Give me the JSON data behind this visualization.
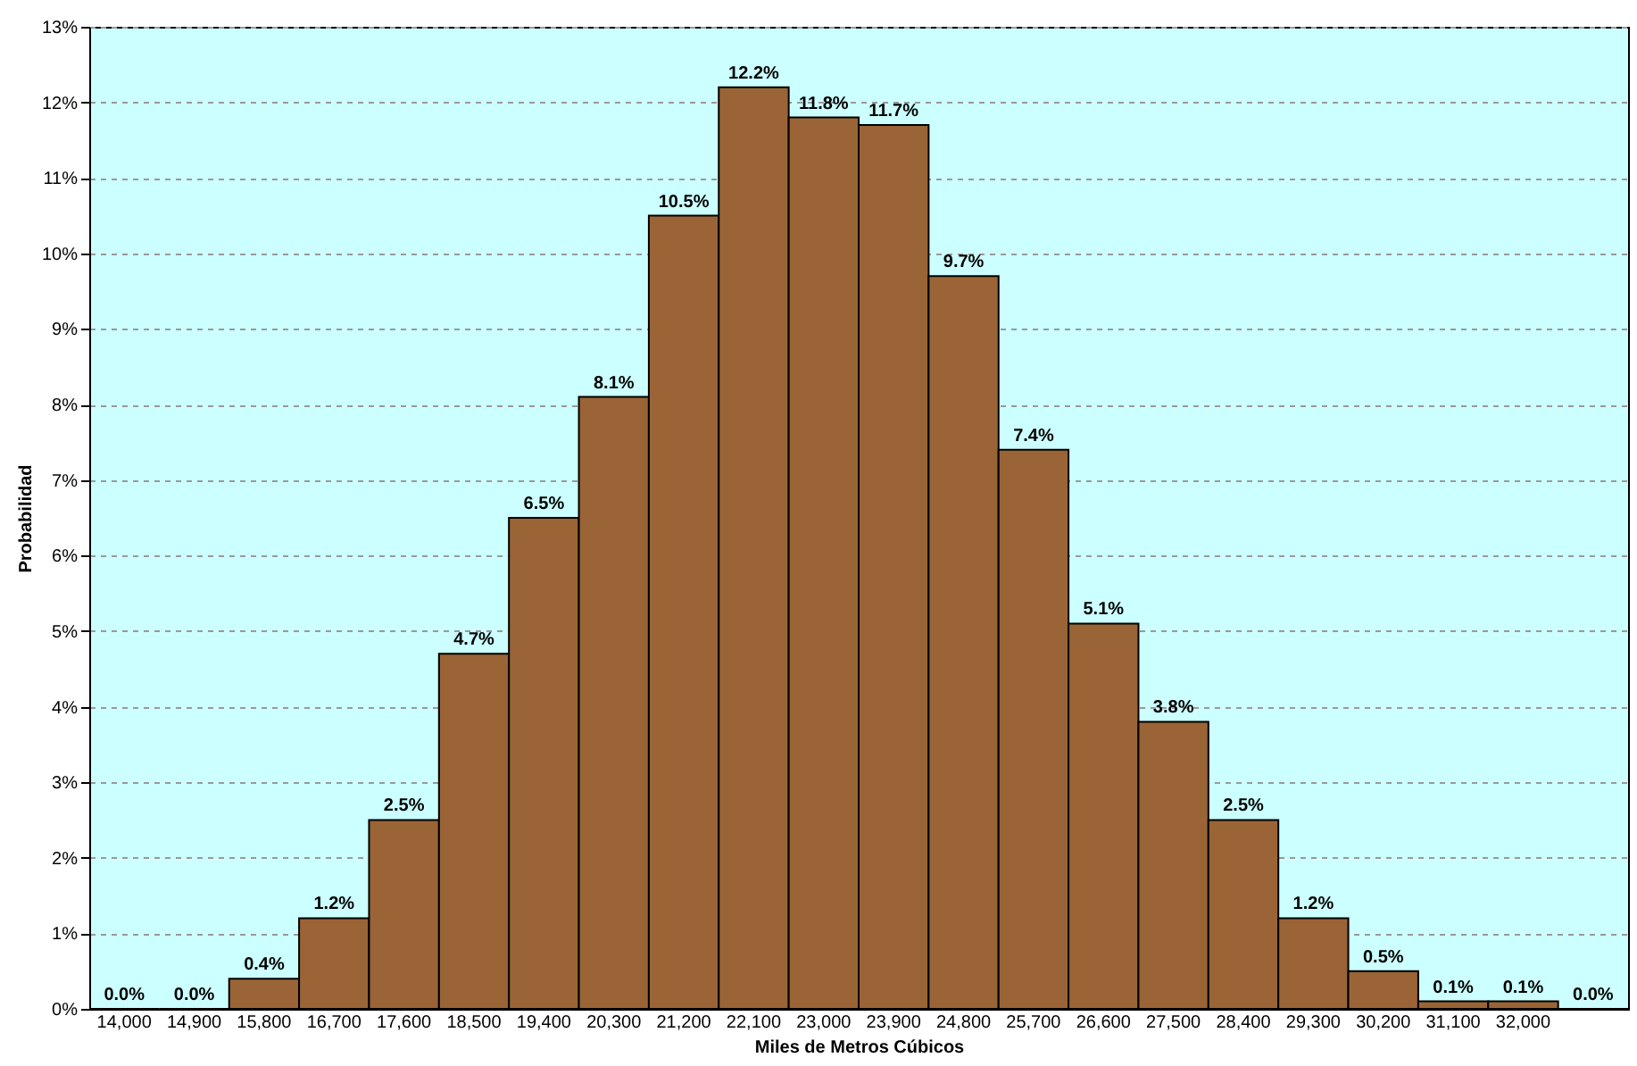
{
  "chart_data": {
    "type": "bar",
    "xlabel": "Miles de Metros Cúbicos",
    "ylabel": "Probabilidad",
    "categories": [
      "14,000",
      "14,900",
      "15,800",
      "16,700",
      "17,600",
      "18,500",
      "19,400",
      "20,300",
      "21,200",
      "22,100",
      "23,000",
      "23,900",
      "24,800",
      "25,700",
      "26,600",
      "27,500",
      "28,400",
      "29,300",
      "30,200",
      "31,100",
      "32,000",
      null
    ],
    "values": [
      0.0,
      0.0,
      0.4,
      1.2,
      2.5,
      4.7,
      6.5,
      8.1,
      10.5,
      12.2,
      11.8,
      11.7,
      9.7,
      7.4,
      5.1,
      3.8,
      2.5,
      1.2,
      0.5,
      0.1,
      0.1,
      0.0
    ],
    "value_labels": [
      "0.0%",
      "0.0%",
      "0.4%",
      "1.2%",
      "2.5%",
      "4.7%",
      "6.5%",
      "8.1%",
      "10.5%",
      "12.2%",
      "11.8%",
      "11.7%",
      "9.7%",
      "7.4%",
      "5.1%",
      "3.8%",
      "2.5%",
      "1.2%",
      "0.5%",
      "0.1%",
      "0.1%",
      "0.0%"
    ],
    "color": "#9a6436",
    "ylim": [
      0,
      13
    ],
    "yticks": [
      {
        "value": 0,
        "label": "0%"
      },
      {
        "value": 1,
        "label": "1%"
      },
      {
        "value": 2,
        "label": "2%"
      },
      {
        "value": 3,
        "label": "3%"
      },
      {
        "value": 4,
        "label": "4%"
      },
      {
        "value": 5,
        "label": "5%"
      },
      {
        "value": 6,
        "label": "6%"
      },
      {
        "value": 7,
        "label": "7%"
      },
      {
        "value": 8,
        "label": "8%"
      },
      {
        "value": 9,
        "label": "9%"
      },
      {
        "value": 10,
        "label": "10%"
      },
      {
        "value": 11,
        "label": "11%"
      },
      {
        "value": 12,
        "label": "12%"
      },
      {
        "value": 13,
        "label": "13%"
      }
    ],
    "grid": "y"
  }
}
